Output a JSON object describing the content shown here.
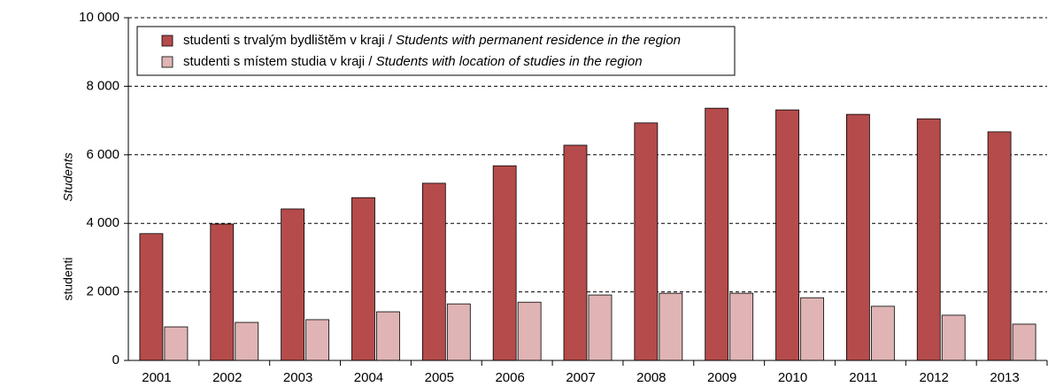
{
  "chart_data": {
    "type": "bar",
    "y_label": "studenti",
    "y_label_en": "Students",
    "categories": [
      "2001",
      "2002",
      "2003",
      "2004",
      "2005",
      "2006",
      "2007",
      "2008",
      "2009",
      "2010",
      "2011",
      "2012",
      "2013"
    ],
    "series": [
      {
        "name": "studenti s trvalým bydlištěm v kraji / Students with permanent residence in the region",
        "color": "#b54b4b",
        "values": [
          3700,
          3980,
          4420,
          4750,
          5170,
          5680,
          6280,
          6930,
          7360,
          7310,
          7180,
          7050,
          6670
        ]
      },
      {
        "name": "studenti s místem studia v kraji / Students with location of studies in the region",
        "color": "#e0b4b4",
        "values": [
          980,
          1110,
          1190,
          1420,
          1650,
          1700,
          1910,
          1960,
          1960,
          1830,
          1580,
          1320,
          1060
        ]
      }
    ],
    "ylim": [
      0,
      10000
    ],
    "yticks": [
      0,
      {
        "value": 2000,
        "label": "2 000"
      },
      {
        "value": 4000,
        "label": "4 000"
      },
      {
        "value": 6000,
        "label": "6 000"
      },
      {
        "value": 8000,
        "label": "8 000"
      },
      {
        "value": 10000,
        "label": "10 000"
      }
    ],
    "grid": true,
    "legend": "top-left"
  }
}
